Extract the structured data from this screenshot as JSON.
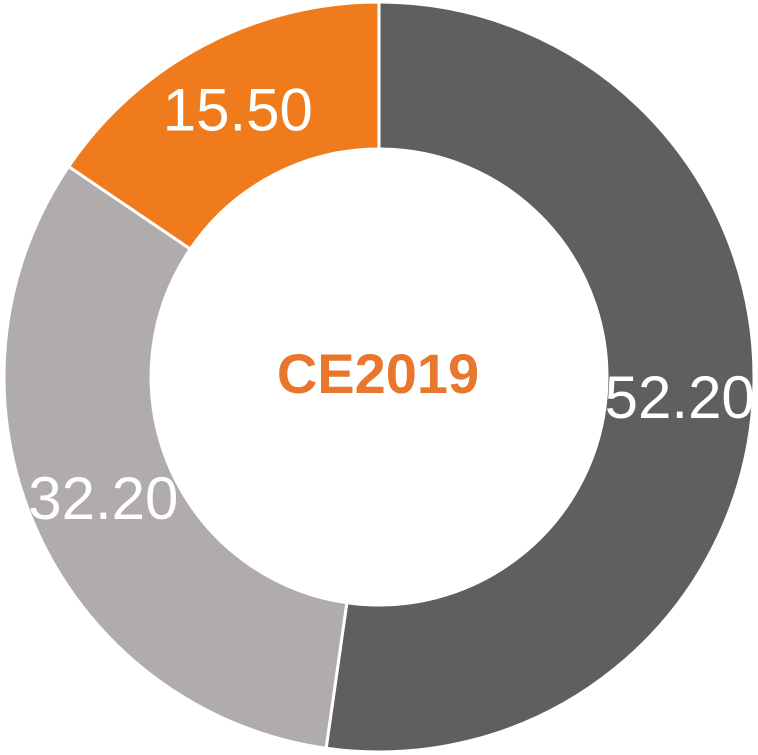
{
  "chart_data": {
    "type": "donut",
    "title": "CE2019",
    "title_color": "#e8762c",
    "categories": [
      null,
      null,
      null
    ],
    "values": [
      52.2,
      32.2,
      15.5
    ],
    "value_labels": [
      "52.20",
      "32.20",
      "15.50"
    ],
    "colors": [
      "#5f5f5f",
      "#afacab",
      "#ef7b1c"
    ]
  }
}
